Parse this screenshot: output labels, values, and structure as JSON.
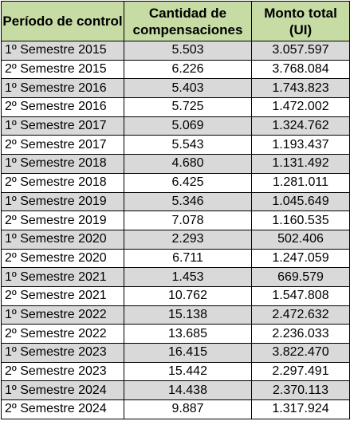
{
  "table": {
    "headers": {
      "period": "Período de control",
      "count": "Cantidad de compensaciones",
      "amount": "Monto total (UI)"
    },
    "rows": [
      {
        "period": "1º Semestre 2015",
        "count": "5.503",
        "amount": "3.057.597"
      },
      {
        "period": "2º Semestre 2015",
        "count": "6.226",
        "amount": "3.768.084"
      },
      {
        "period": "1º Semestre 2016",
        "count": "5.403",
        "amount": "1.743.823"
      },
      {
        "period": "2º Semestre 2016",
        "count": "5.725",
        "amount": "1.472.002"
      },
      {
        "period": "1º Semestre 2017",
        "count": "5.069",
        "amount": "1.324.762"
      },
      {
        "period": "2º Semestre 2017",
        "count": "5.543",
        "amount": "1.193.437"
      },
      {
        "period": "1º Semestre 2018",
        "count": "4.680",
        "amount": "1.131.492"
      },
      {
        "period": "2º Semestre 2018",
        "count": "6.425",
        "amount": "1.281.011"
      },
      {
        "period": "1º Semestre 2019",
        "count": "5.346",
        "amount": "1.045.649"
      },
      {
        "period": "2º Semestre 2019",
        "count": "7.078",
        "amount": "1.160.535"
      },
      {
        "period": "1º Semestre 2020",
        "count": "2.293",
        "amount": "502.406"
      },
      {
        "period": "2º Semestre 2020",
        "count": "6.711",
        "amount": "1.247.059"
      },
      {
        "period": "1º Semestre 2021",
        "count": "1.453",
        "amount": "669.579"
      },
      {
        "period": "2º Semestre 2021",
        "count": "10.762",
        "amount": "1.547.808"
      },
      {
        "period": "1º Semestre 2022",
        "count": "15.138",
        "amount": "2.472.632"
      },
      {
        "period": "2º Semestre 2022",
        "count": "13.685",
        "amount": "2.236.033"
      },
      {
        "period": "1º Semestre 2023",
        "count": "16.415",
        "amount": "3.822.470"
      },
      {
        "period": "2º Semestre 2023",
        "count": "15.442",
        "amount": "2.297.491"
      },
      {
        "period": "1º Semestre 2024",
        "count": "14.438",
        "amount": "2.370.113"
      },
      {
        "period": "2º Semestre 2024",
        "count": "9.887",
        "amount": "1.317.924"
      }
    ]
  },
  "colors": {
    "header_bg": "#c6dca4",
    "odd_row_bg": "#d9d9d9",
    "even_row_bg": "#ffffff",
    "border": "#000000"
  }
}
